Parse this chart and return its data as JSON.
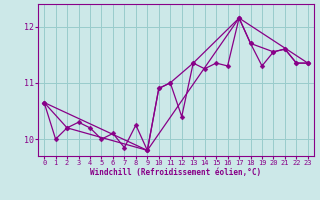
{
  "xlabel": "Windchill (Refroidissement éolien,°C)",
  "bg_color": "#cce8e8",
  "line_color": "#880088",
  "grid_color": "#99cccc",
  "xlim": [
    -0.5,
    23.5
  ],
  "ylim": [
    9.7,
    12.4
  ],
  "yticks": [
    10,
    11,
    12
  ],
  "xticks": [
    0,
    1,
    2,
    3,
    4,
    5,
    6,
    7,
    8,
    9,
    10,
    11,
    12,
    13,
    14,
    15,
    16,
    17,
    18,
    19,
    20,
    21,
    22,
    23
  ],
  "series1_x": [
    0,
    1,
    2,
    3,
    4,
    5,
    6,
    7,
    8,
    9,
    10,
    11,
    12,
    13,
    14,
    15,
    16,
    17,
    18,
    19,
    20,
    21,
    22,
    23
  ],
  "series1_y": [
    10.65,
    10.0,
    10.2,
    10.3,
    10.2,
    10.0,
    10.1,
    9.85,
    10.25,
    9.8,
    10.9,
    11.0,
    10.4,
    11.35,
    11.25,
    11.35,
    11.3,
    12.15,
    11.7,
    11.3,
    11.55,
    11.6,
    11.35,
    11.35
  ],
  "series2_x": [
    0,
    2,
    9,
    10,
    11,
    13,
    17,
    18,
    20,
    21,
    22,
    23
  ],
  "series2_y": [
    10.65,
    10.2,
    9.8,
    10.9,
    11.0,
    11.35,
    12.15,
    11.7,
    11.55,
    11.6,
    11.35,
    11.35
  ],
  "series3_x": [
    0,
    9,
    17,
    23
  ],
  "series3_y": [
    10.65,
    9.8,
    12.15,
    11.35
  ],
  "marker_size": 2.5,
  "line_width": 0.9
}
